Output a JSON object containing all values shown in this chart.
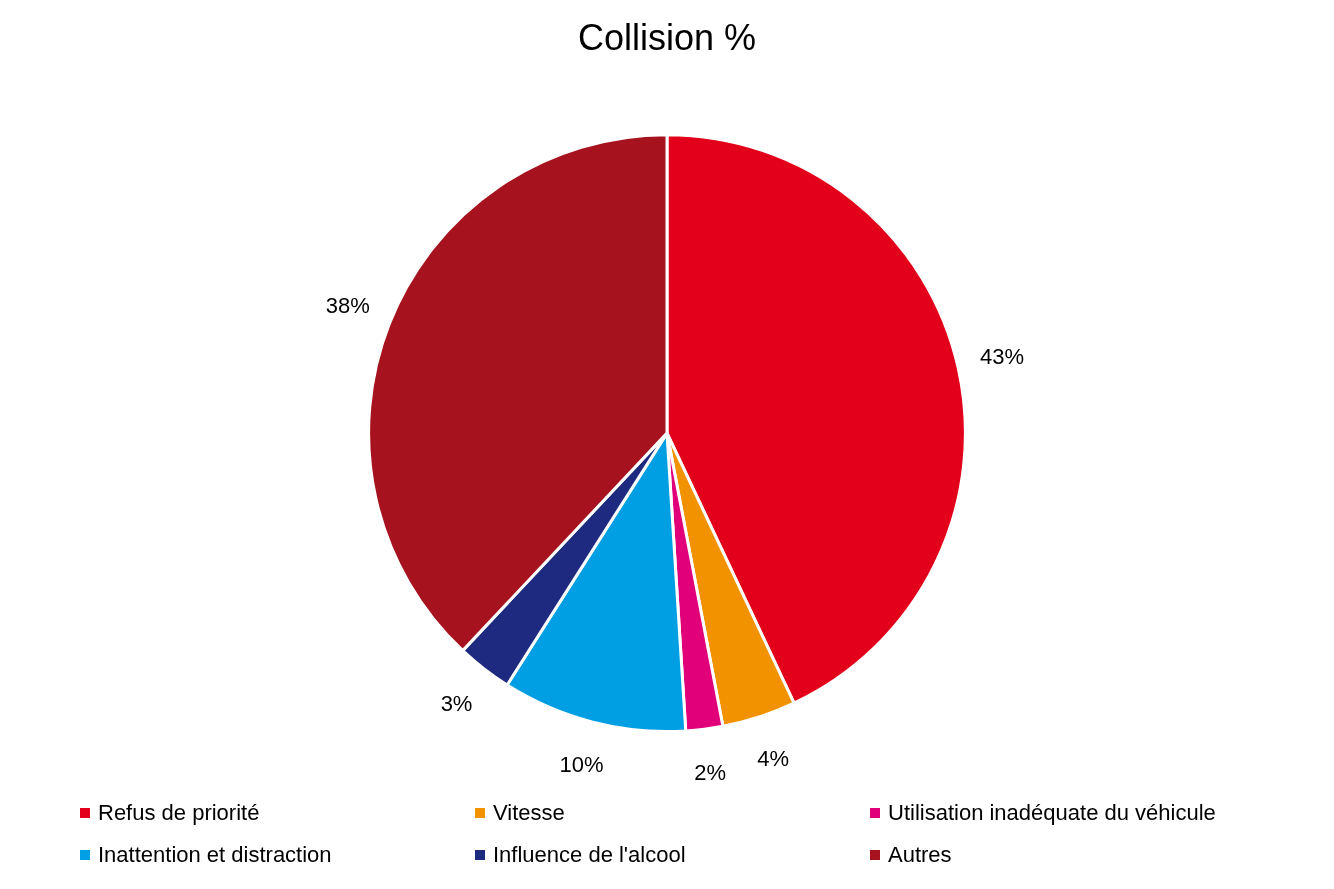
{
  "chart_data": {
    "type": "pie",
    "title": "Collision %",
    "categories": [
      "Refus de priorité",
      "Vitesse",
      "Utilisation inadéquate du véhicule",
      "Inattention et distraction",
      "Influence de l'alcool",
      "Autres"
    ],
    "values": [
      43,
      4,
      2,
      10,
      3,
      38
    ],
    "value_labels": [
      "43%",
      "4%",
      "2%",
      "10%",
      "3%",
      "38%"
    ],
    "colors": [
      "#e2001a",
      "#f39200",
      "#e2007a",
      "#009fe3",
      "#1d2a80",
      "#a6131f"
    ],
    "legend": "bottom"
  }
}
